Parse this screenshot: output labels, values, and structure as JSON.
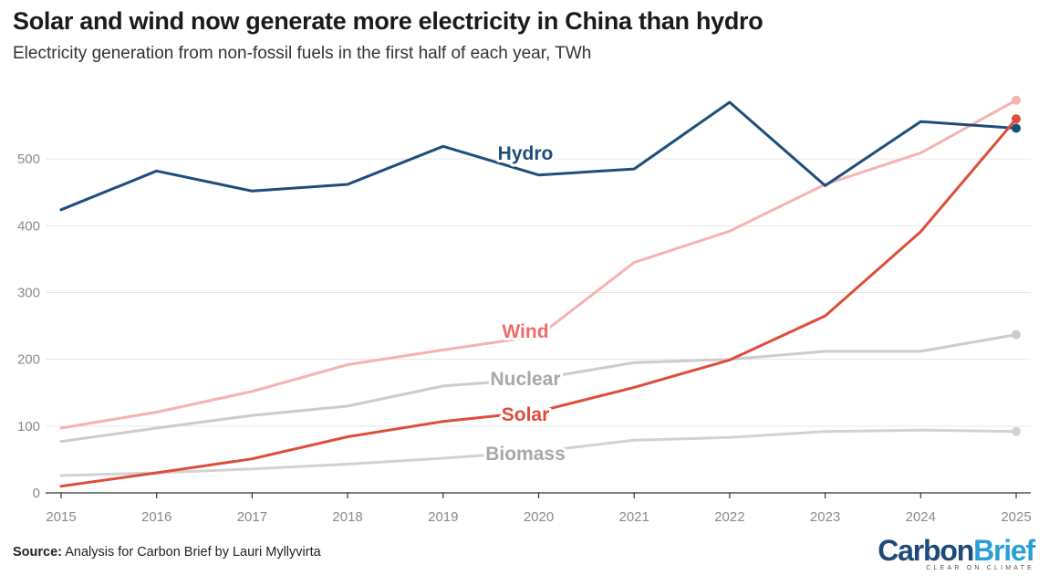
{
  "chart_data": {
    "type": "line",
    "title": "Solar and wind now generate more electricity in China than hydro",
    "subtitle": "Electricity generation from non-fossil fuels in the first half of each year, TWh",
    "xlabel": "",
    "ylabel": "",
    "x": [
      2015,
      2016,
      2017,
      2018,
      2019,
      2020,
      2021,
      2022,
      2023,
      2024,
      2025
    ],
    "ylim": [
      0,
      600
    ],
    "yticks": [
      0,
      100,
      200,
      300,
      400,
      500
    ],
    "grid": true,
    "legend": "inline labels",
    "series": [
      {
        "name": "Hydro",
        "color": "#1d4e7a",
        "values": [
          424,
          482,
          452,
          462,
          519,
          476,
          485,
          585,
          460,
          556,
          546
        ]
      },
      {
        "name": "Wind",
        "color": "#f5b2b0",
        "values": [
          97,
          121,
          152,
          192,
          214,
          235,
          345,
          392,
          462,
          509,
          588
        ]
      },
      {
        "name": "Nuclear",
        "color": "#cccccc",
        "values": [
          77,
          97,
          116,
          130,
          160,
          171,
          195,
          200,
          212,
          212,
          237
        ]
      },
      {
        "name": "Solar",
        "color": "#de4c3a",
        "values": [
          10,
          30,
          51,
          84,
          107,
          122,
          158,
          199,
          265,
          391,
          560
        ]
      },
      {
        "name": "Biomass",
        "color": "#d2d2d2",
        "values": [
          26,
          30,
          36,
          43,
          52,
          62,
          79,
          83,
          92,
          94,
          92
        ]
      }
    ]
  },
  "series_labels": {
    "hydro": "Hydro",
    "wind": "Wind",
    "nuclear": "Nuclear",
    "solar": "Solar",
    "biomass": "Biomass"
  },
  "label_colors": {
    "hydro": "#1d4e7a",
    "wind": "#ef6b66",
    "nuclear": "#a8a8a8",
    "solar": "#de4c3a",
    "biomass": "#a8a8a8"
  },
  "source": {
    "key": "Source:",
    "text": " Analysis for Carbon Brief by Lauri Myllyvirta"
  },
  "logo": {
    "part1": "Carbon",
    "part2": "Brief",
    "tagline": "CLEAR ON CLIMATE"
  }
}
